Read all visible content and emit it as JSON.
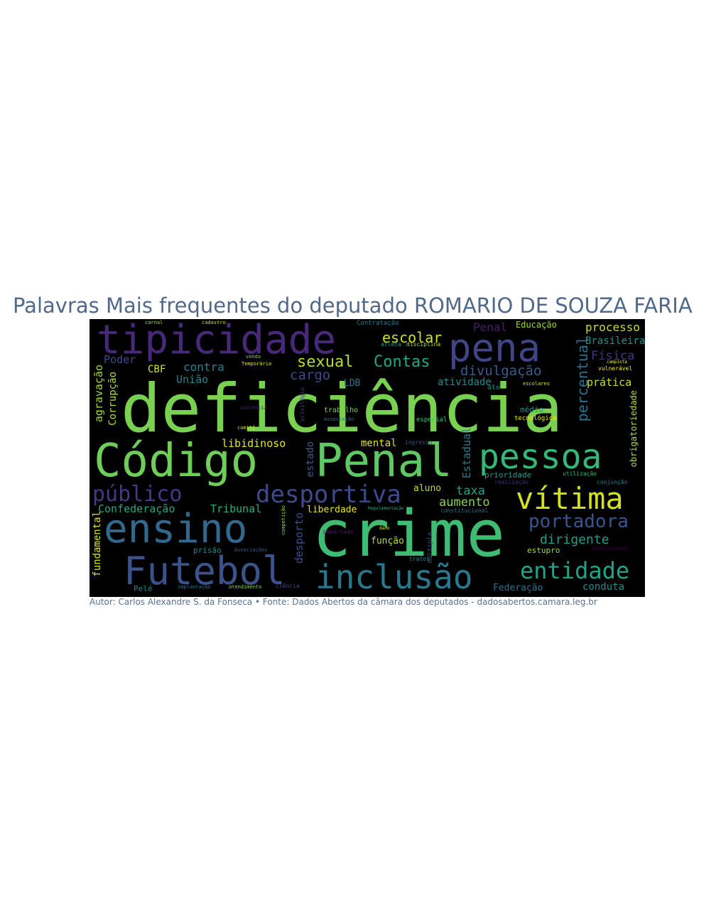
{
  "title": "Palavras Mais frequentes do deputado ROMARIO DE SOUZA FARIA",
  "caption": "Autor: Carlos Alexandre S. da Fonseca • Fonte: Dados Abertos da câmara dos deputados - dadosabertos.camara.leg.br",
  "colors": {
    "background": "#000000",
    "title": "#50698a",
    "caption": "#5b7193",
    "palette": [
      "#440154",
      "#3b528b",
      "#21918c",
      "#5ec962",
      "#fde725"
    ]
  },
  "words": [
    {
      "text": "deficiência",
      "color": "#7ad151"
    },
    {
      "text": "crime",
      "color": "#3fbc73"
    },
    {
      "text": "Código",
      "color": "#6ece58"
    },
    {
      "text": "Penal",
      "color": "#5ec962"
    },
    {
      "text": "tipicidade",
      "color": "#482878"
    },
    {
      "text": "pena",
      "color": "#414487"
    },
    {
      "text": "ensino",
      "color": "#31688e"
    },
    {
      "text": "Futebol",
      "color": "#3b528b"
    },
    {
      "text": "pessoa",
      "color": "#35b779"
    },
    {
      "text": "inclusão",
      "color": "#2a788e"
    },
    {
      "text": "vítima",
      "color": "#d2e21b"
    },
    {
      "text": "desportiva",
      "color": "#3e4a89"
    },
    {
      "text": "público",
      "color": "#443983"
    },
    {
      "text": "entidade",
      "color": "#20a386"
    },
    {
      "text": "portadora",
      "color": "#39568c"
    },
    {
      "text": "sexual",
      "color": "#b5de2b"
    },
    {
      "text": "Contas",
      "color": "#22a884"
    },
    {
      "text": "escolar",
      "color": "#cde11d"
    },
    {
      "text": "divulgação",
      "color": "#365c8d"
    },
    {
      "text": "cargo",
      "color": "#404688"
    },
    {
      "text": "percentual",
      "color": "#2c728e"
    },
    {
      "text": "processo",
      "color": "#c2df23"
    },
    {
      "text": "Física",
      "color": "#46327e"
    },
    {
      "text": "Brasileira",
      "color": "#1f948c"
    },
    {
      "text": "prática",
      "color": "#c8e020"
    },
    {
      "text": "obrigatoriedade",
      "color": "#addc30"
    },
    {
      "text": "Penal",
      "color": "#481b6d"
    },
    {
      "text": "Educação",
      "color": "#9bd93c"
    },
    {
      "text": "contra",
      "color": "#27808e"
    },
    {
      "text": "União",
      "color": "#25848e"
    },
    {
      "text": "CBF",
      "color": "#d8e219"
    },
    {
      "text": "Poder",
      "color": "#3e4989"
    },
    {
      "text": "agravação",
      "color": "#a0da39"
    },
    {
      "text": "Corrupção",
      "color": "#b0dd2f"
    },
    {
      "text": "LDB",
      "color": "#2d708e"
    },
    {
      "text": "atividade",
      "color": "#23898e"
    },
    {
      "text": "dirigente",
      "color": "#1e9b8a"
    },
    {
      "text": "libidinoso",
      "color": "#e5e419"
    },
    {
      "text": "mental",
      "color": "#e2e418"
    },
    {
      "text": "estado",
      "color": "#365d8d"
    },
    {
      "text": "Estadual",
      "color": "#287c8e"
    },
    {
      "text": "aluno",
      "color": "#bddf26"
    },
    {
      "text": "taxa",
      "color": "#1fa088"
    },
    {
      "text": "aumento",
      "color": "#86d549"
    },
    {
      "text": "Confederação",
      "color": "#22a785"
    },
    {
      "text": "Tribunal",
      "color": "#29af7f"
    },
    {
      "text": "liberdade",
      "color": "#e7e419"
    },
    {
      "text": "fundamental",
      "color": "#dde318"
    },
    {
      "text": "desporto",
      "color": "#3c4f8a"
    },
    {
      "text": "função",
      "color": "#b8de29"
    },
    {
      "text": "Federação",
      "color": "#2e6e8e"
    },
    {
      "text": "conduta",
      "color": "#228c8d"
    },
    {
      "text": "prisão",
      "color": "#26828e"
    },
    {
      "text": "Pelé",
      "color": "#25858e"
    },
    {
      "text": "trabalho",
      "color": "#7fd34e"
    },
    {
      "text": "médio",
      "color": "#228d8d"
    },
    {
      "text": "prioridade",
      "color": "#1f988b"
    },
    {
      "text": "estupro",
      "color": "#a2da37"
    },
    {
      "text": "ingresso",
      "color": "#3a538b"
    },
    {
      "text": "especial",
      "color": "#40bd72"
    },
    {
      "text": "tecnológica",
      "color": "#f1e51d"
    },
    {
      "text": "realização",
      "color": "#472a7a"
    },
    {
      "text": "utilização",
      "color": "#32b67a"
    },
    {
      "text": "conjunção",
      "color": "#277f8e"
    },
    {
      "text": "múltipla",
      "color": "#3b518b"
    },
    {
      "text": "importado",
      "color": "#48186a"
    },
    {
      "text": "Regulamentação",
      "color": "#26ad81"
    },
    {
      "text": "constitucional",
      "color": "#2e6f8e"
    },
    {
      "text": "competição",
      "color": "#90d743"
    },
    {
      "text": "Associações",
      "color": "#34608d"
    },
    {
      "text": "violência",
      "color": "#482576"
    },
    {
      "text": "Associação",
      "color": "#2c738e"
    },
    {
      "text": "escolares",
      "color": "#dae319"
    },
    {
      "text": "Contratação",
      "color": "#2a778e"
    },
    {
      "text": "carnal",
      "color": "#a8db34"
    },
    {
      "text": "cadastro",
      "color": "#c5e021"
    },
    {
      "text": "atleta",
      "color": "#1f9e89"
    },
    {
      "text": "disciplina",
      "color": "#b2dd2d"
    },
    {
      "text": "venda",
      "color": "#7cd250"
    },
    {
      "text": "Temporária",
      "color": "#eae51a"
    },
    {
      "text": "implantação",
      "color": "#2b758e"
    },
    {
      "text": "atendimento",
      "color": "#8bd646"
    },
    {
      "text": "ciência",
      "color": "#3f4788"
    },
    {
      "text": "profissional",
      "color": "#440154"
    },
    {
      "text": "vulnerável",
      "color": "#f6e620"
    },
    {
      "text": "campista",
      "color": "#eff821"
    },
    {
      "text": "ato",
      "color": "#24878e"
    },
    {
      "text": "privilégio",
      "color": "#443a83"
    },
    {
      "text": "tratos",
      "color": "#23898e"
    },
    {
      "text": "comitê",
      "color": "#d5e21a"
    },
    {
      "text": "dano",
      "color": "#fde725"
    }
  ]
}
